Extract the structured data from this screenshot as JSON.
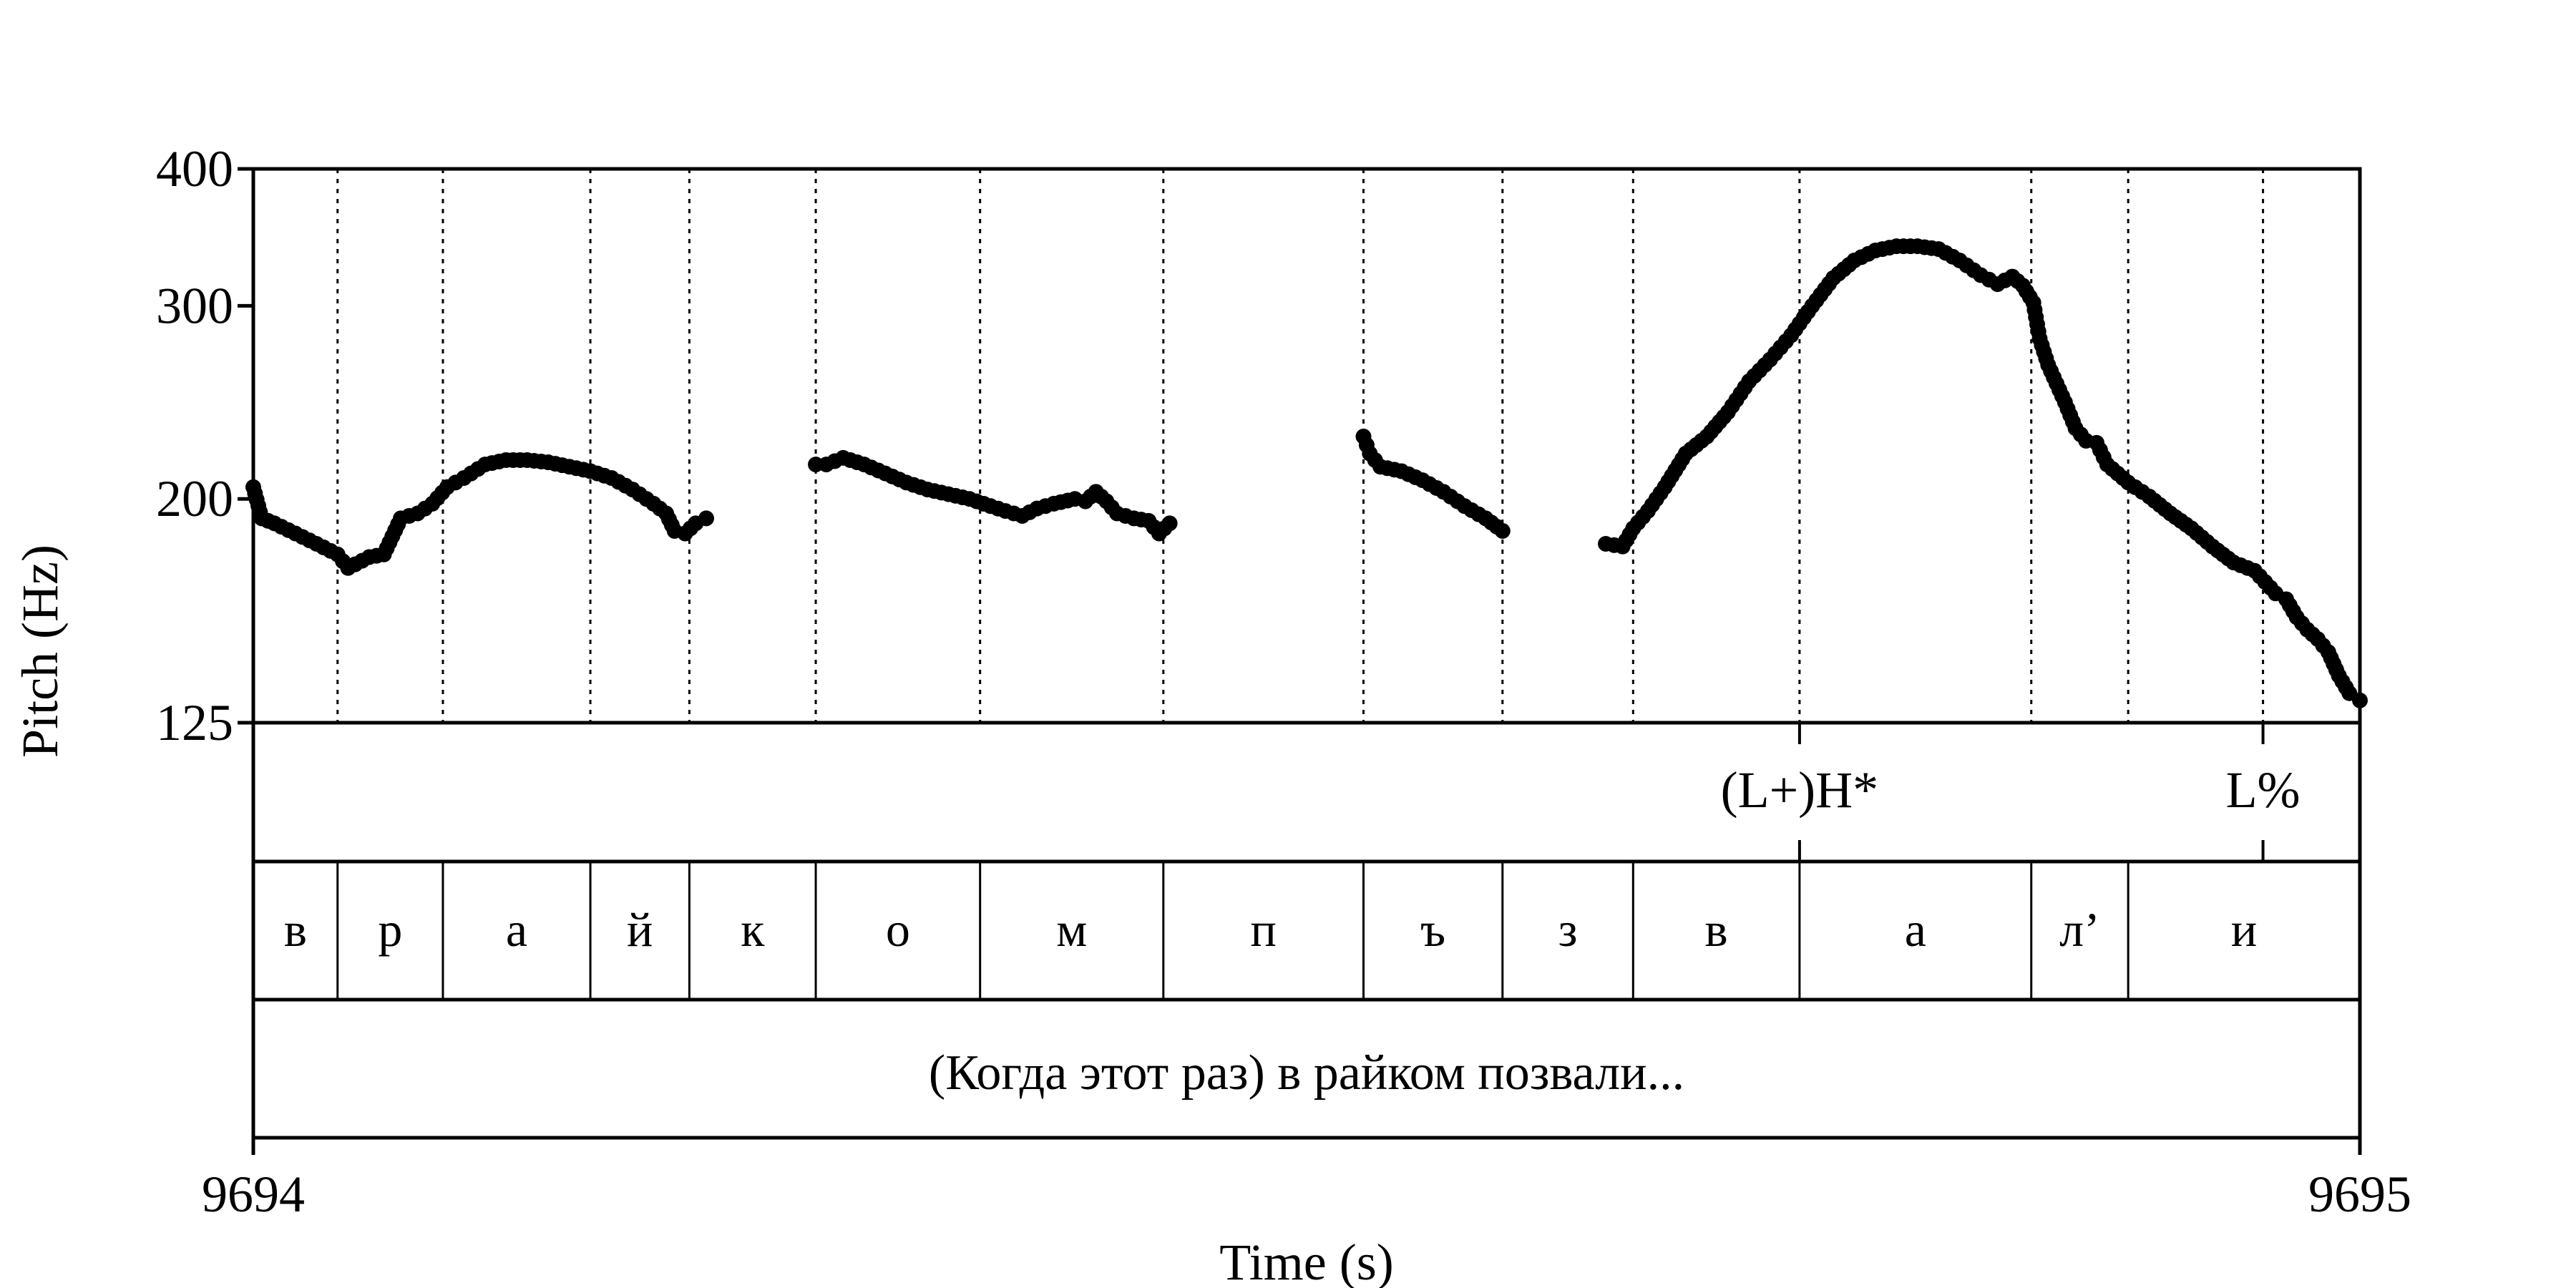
{
  "chart_data": {
    "type": "scatter",
    "xlabel": "Time (s)",
    "ylabel": "Pitch (Hz)",
    "xlim": [
      9694,
      9695
    ],
    "ylim": [
      125,
      400
    ],
    "y_scale": "log",
    "x_ticks": [
      "9694",
      "9695"
    ],
    "y_ticks": [
      {
        "value": 400,
        "label": "400"
      },
      {
        "value": 300,
        "label": "300"
      },
      {
        "value": 200,
        "label": "200"
      },
      {
        "value": 125,
        "label": "125"
      }
    ],
    "boundaries": [
      9694.04,
      9694.09,
      9694.16,
      9694.207,
      9694.267,
      9694.345,
      9694.432,
      9694.527,
      9694.593,
      9694.655,
      9694.734,
      9694.844,
      9694.89,
      9694.954
    ],
    "tones": [
      {
        "time": 9694.734,
        "label": "(L+)H*"
      },
      {
        "time": 9694.954,
        "label": "L%"
      }
    ],
    "segments": [
      {
        "start": 9694.0,
        "end": 9694.04,
        "label": "в"
      },
      {
        "start": 9694.04,
        "end": 9694.09,
        "label": "р"
      },
      {
        "start": 9694.09,
        "end": 9694.16,
        "label": "а"
      },
      {
        "start": 9694.16,
        "end": 9694.207,
        "label": "й"
      },
      {
        "start": 9694.207,
        "end": 9694.267,
        "label": "к"
      },
      {
        "start": 9694.267,
        "end": 9694.345,
        "label": "о"
      },
      {
        "start": 9694.345,
        "end": 9694.432,
        "label": "м"
      },
      {
        "start": 9694.432,
        "end": 9694.527,
        "label": "п"
      },
      {
        "start": 9694.527,
        "end": 9694.593,
        "label": "ъ"
      },
      {
        "start": 9694.593,
        "end": 9694.655,
        "label": "з"
      },
      {
        "start": 9694.655,
        "end": 9694.734,
        "label": "в"
      },
      {
        "start": 9694.734,
        "end": 9694.844,
        "label": "а"
      },
      {
        "start": 9694.844,
        "end": 9694.89,
        "label": "л’"
      },
      {
        "start": 9694.89,
        "end": 9695.0,
        "label": "и"
      }
    ],
    "utterance": "(Когда этот раз) в райком позвали...",
    "series": [
      {
        "points": [
          [
            9694.0,
            205
          ],
          [
            9694.004,
            192
          ],
          [
            9694.01,
            190
          ],
          [
            9694.02,
            186
          ],
          [
            9694.03,
            182
          ],
          [
            9694.04,
            178
          ],
          [
            9694.045,
            173
          ],
          [
            9694.055,
            177
          ],
          [
            9694.062,
            178
          ],
          [
            9694.07,
            192
          ],
          [
            9694.078,
            194
          ],
          [
            9694.085,
            198
          ],
          [
            9694.092,
            205
          ],
          [
            9694.1,
            209
          ],
          [
            9694.11,
            215
          ],
          [
            9694.12,
            217
          ],
          [
            9694.13,
            217
          ],
          [
            9694.14,
            216
          ],
          [
            9694.15,
            214
          ],
          [
            9694.16,
            212
          ],
          [
            9694.17,
            209
          ],
          [
            9694.18,
            204
          ],
          [
            9694.19,
            198
          ],
          [
            9694.196,
            194
          ],
          [
            9694.2,
            187
          ],
          [
            9694.205,
            186
          ],
          [
            9694.21,
            190
          ],
          [
            9694.215,
            192
          ]
        ]
      },
      {
        "points": [
          [
            9694.267,
            215
          ],
          [
            9694.272,
            215
          ],
          [
            9694.28,
            218
          ],
          [
            9694.29,
            215
          ],
          [
            9694.3,
            211
          ],
          [
            9694.31,
            207
          ],
          [
            9694.32,
            204
          ],
          [
            9694.33,
            202
          ],
          [
            9694.34,
            200
          ],
          [
            9694.35,
            197
          ],
          [
            9694.357,
            195
          ],
          [
            9694.365,
            193
          ],
          [
            9694.372,
            196
          ],
          [
            9694.38,
            198
          ],
          [
            9694.39,
            200
          ],
          [
            9694.395,
            199
          ],
          [
            9694.4,
            203
          ],
          [
            9694.405,
            199
          ],
          [
            9694.41,
            194
          ],
          [
            9694.418,
            192
          ],
          [
            9694.425,
            191
          ],
          [
            9694.43,
            186
          ],
          [
            9694.435,
            190
          ]
        ]
      },
      {
        "points": [
          [
            9694.527,
            228
          ],
          [
            9694.53,
            220
          ],
          [
            9694.535,
            214
          ],
          [
            9694.545,
            212
          ],
          [
            9694.555,
            208
          ],
          [
            9694.565,
            203
          ],
          [
            9694.575,
            197
          ],
          [
            9694.585,
            192
          ],
          [
            9694.593,
            187
          ]
        ]
      },
      {
        "points": [
          [
            9694.642,
            182
          ],
          [
            9694.65,
            181
          ],
          [
            9694.655,
            188
          ],
          [
            9694.662,
            195
          ],
          [
            9694.67,
            205
          ],
          [
            9694.68,
            220
          ],
          [
            9694.69,
            228
          ],
          [
            9694.7,
            240
          ],
          [
            9694.71,
            256
          ],
          [
            9694.72,
            268
          ],
          [
            9694.73,
            282
          ],
          [
            9694.74,
            300
          ],
          [
            9694.75,
            318
          ],
          [
            9694.76,
            330
          ],
          [
            9694.77,
            337
          ],
          [
            9694.78,
            340
          ],
          [
            9694.79,
            340
          ],
          [
            9694.8,
            338
          ],
          [
            9694.81,
            330
          ],
          [
            9694.82,
            320
          ],
          [
            9694.828,
            314
          ],
          [
            9694.835,
            319
          ],
          [
            9694.84,
            313
          ],
          [
            9694.845,
            302
          ],
          [
            9694.848,
            280
          ],
          [
            9694.852,
            265
          ],
          [
            9694.86,
            245
          ],
          [
            9694.865,
            232
          ],
          [
            9694.87,
            226
          ],
          [
            9694.875,
            225
          ],
          [
            9694.88,
            215
          ],
          [
            9694.89,
            207
          ],
          [
            9694.9,
            201
          ],
          [
            9694.91,
            194
          ],
          [
            9694.92,
            188
          ],
          [
            9694.93,
            181
          ],
          [
            9694.94,
            175
          ],
          [
            9694.95,
            172
          ],
          [
            9694.955,
            168
          ],
          [
            9694.96,
            164
          ],
          [
            9694.965,
            162
          ],
          [
            9694.97,
            156
          ],
          [
            9694.975,
            152
          ],
          [
            9694.98,
            149
          ],
          [
            9694.985,
            145
          ],
          [
            9694.99,
            138
          ],
          [
            9694.995,
            133
          ],
          [
            9695.0,
            131
          ]
        ]
      }
    ]
  }
}
